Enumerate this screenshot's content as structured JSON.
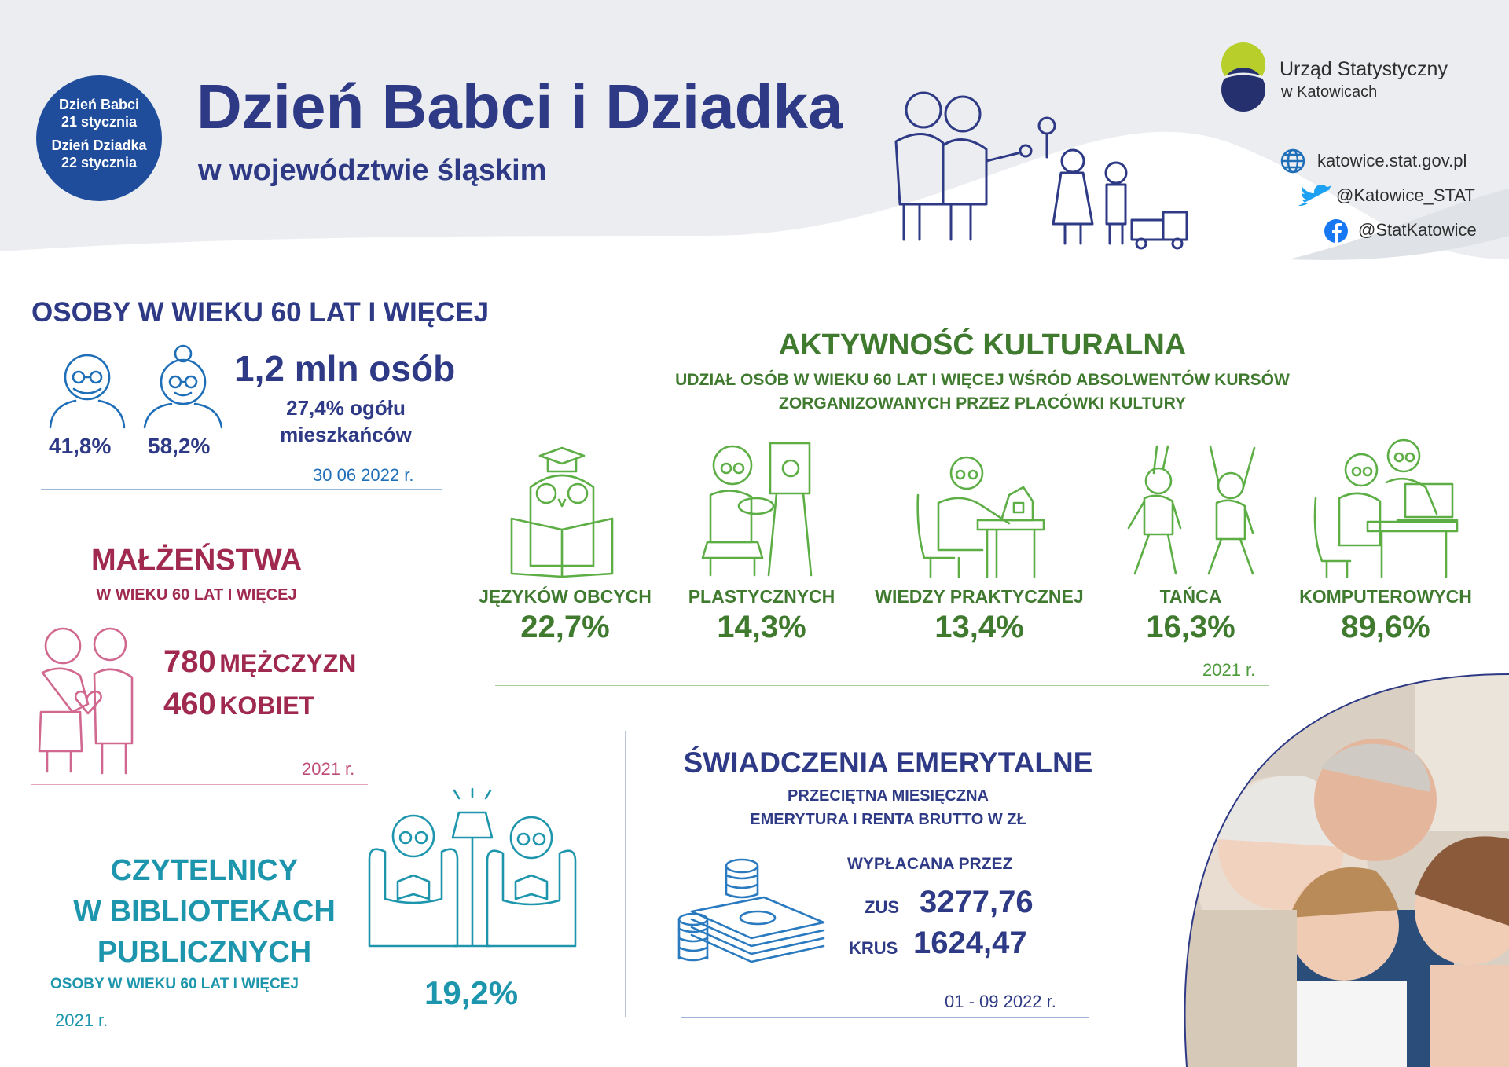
{
  "header": {
    "badge_line1": "Dzień Babci",
    "badge_line2": "21 stycznia",
    "badge_line3": "Dzień Dziadka",
    "badge_line4": "22 stycznia",
    "title": "Dzień Babci i Dziadka",
    "subtitle": "w województwie śląskim",
    "org_name": "Urząd Statystyczny",
    "org_city": "w Katowicach",
    "website": "katowice.stat.gov.pl",
    "twitter": "@Katowice_STAT",
    "facebook": "@StatKatowice"
  },
  "seniors": {
    "heading": "OSOBY W WIEKU 60 LAT I WIĘCEJ",
    "men_pct": "41,8%",
    "women_pct": "58,2%",
    "total": "1,2 mln osób",
    "share_line1": "27,4% ogółu",
    "share_line2": "mieszkańców",
    "date": "30 06 2022 r."
  },
  "marriages": {
    "heading": "MAŁŻEŃSTWA",
    "subheading": "W WIEKU 60 LAT I WIĘCEJ",
    "men_value": "780",
    "men_label": "MĘŻCZYZN",
    "women_value": "460",
    "women_label": "KOBIET",
    "date": "2021 r."
  },
  "readers": {
    "heading_line1": "CZYTELNICY",
    "heading_line2": "W BIBLIOTEKACH",
    "heading_line3": "PUBLICZNYCH",
    "subheading": "OSOBY W WIEKU 60 LAT I WIĘCEJ",
    "value": "19,2%",
    "date": "2021 r."
  },
  "culture": {
    "heading": "AKTYWNOŚĆ KULTURALNA",
    "sub_line1": "UDZIAŁ OSÓB W WIEKU 60 LAT I WIĘCEJ WŚRÓD ABSOLWENTÓW KURSÓW",
    "sub_line2": "ZORGANIZOWANYCH PRZEZ PLACÓWKI KULTURY",
    "items": [
      {
        "label": "JĘZYKÓW OBCYCH",
        "value": "22,7%"
      },
      {
        "label": "PLASTYCZNYCH",
        "value": "14,3%"
      },
      {
        "label": "WIEDZY PRAKTYCZNEJ",
        "value": "13,4%"
      },
      {
        "label": "TAŃCA",
        "value": "16,3%"
      },
      {
        "label": "KOMPUTEROWYCH",
        "value": "89,6%"
      }
    ],
    "date": "2021 r."
  },
  "pensions": {
    "heading": "ŚWIADCZENIA EMERYTALNE",
    "sub_line1": "PRZECIĘTNA MIESIĘCZNA",
    "sub_line2": "EMERYTURA I RENTA BRUTTO W ZŁ",
    "paid_by": "WYPŁACANA PRZEZ",
    "zus_label": "ZUS",
    "zus_value": "3277,76",
    "krus_label": "KRUS",
    "krus_value": "1624,47",
    "date": "01 - 09 2022 r."
  },
  "colors": {
    "navy": "#2e3a85",
    "green": "#3f7a2f",
    "wine": "#a0294f",
    "teal": "#1d96ad",
    "header_bg": "#ebedf0"
  }
}
